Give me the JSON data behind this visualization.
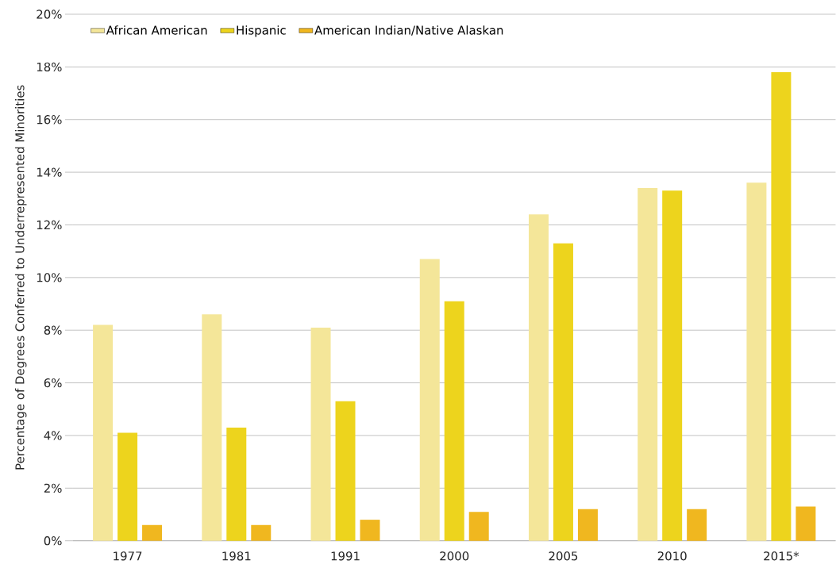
{
  "chart_data": {
    "type": "bar",
    "ylabel": "Percentage of Degrees Conferred to Underrepresented Minorities",
    "categories": [
      "1977",
      "1981",
      "1991",
      "2000",
      "2005",
      "2010",
      "2015*"
    ],
    "series": [
      {
        "name": "African American",
        "color": "#f4e699",
        "values": [
          8.2,
          8.6,
          8.1,
          10.7,
          12.4,
          13.4,
          13.6
        ]
      },
      {
        "name": "Hispanic",
        "color": "#edd41d",
        "values": [
          4.1,
          4.3,
          5.3,
          9.1,
          11.3,
          13.3,
          17.8
        ]
      },
      {
        "name": "American Indian/Native Alaskan",
        "color": "#f0b71f",
        "values": [
          0.6,
          0.6,
          0.8,
          1.1,
          1.2,
          1.2,
          1.3
        ]
      }
    ],
    "ylim": [
      0,
      20
    ],
    "yticks": [
      {
        "value": 0,
        "label": "0%"
      },
      {
        "value": 2,
        "label": "2%"
      },
      {
        "value": 4,
        "label": "4%"
      },
      {
        "value": 6,
        "label": "6%"
      },
      {
        "value": 8,
        "label": "8%"
      },
      {
        "value": 10,
        "label": "10%"
      },
      {
        "value": 12,
        "label": "12%"
      },
      {
        "value": 14,
        "label": "14%"
      },
      {
        "value": 16,
        "label": "16%"
      },
      {
        "value": 18,
        "label": "18%"
      },
      {
        "value": 20,
        "label": "20%"
      }
    ],
    "grid": "y",
    "legend": "top left"
  }
}
